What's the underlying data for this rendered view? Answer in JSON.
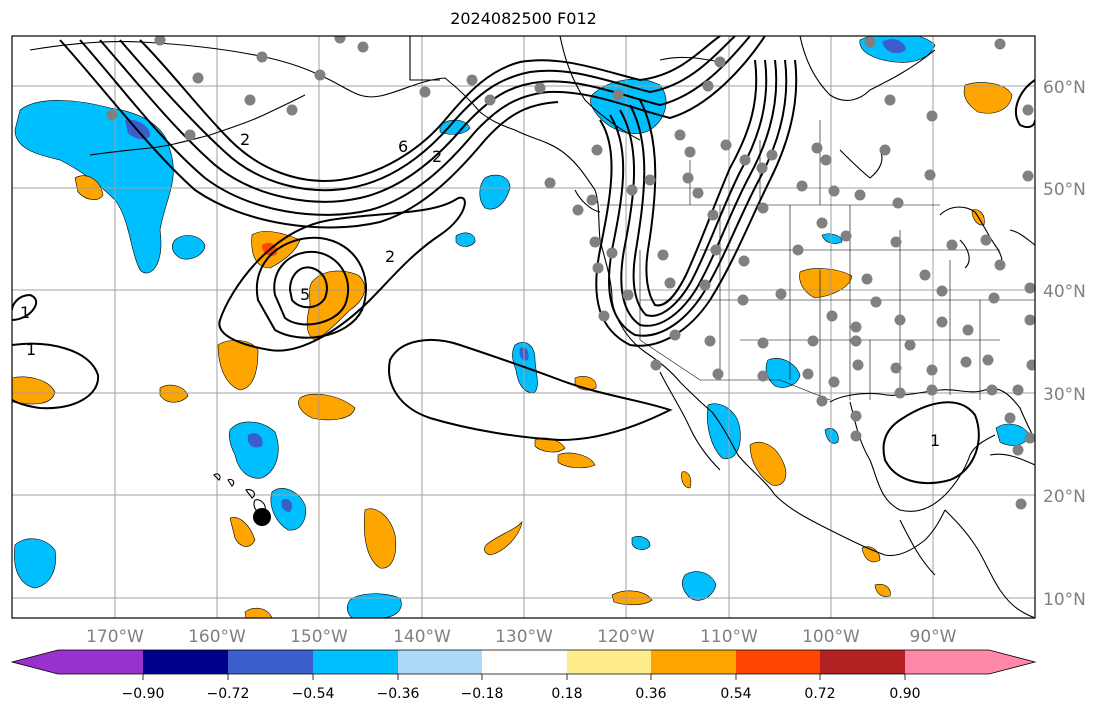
{
  "title": "2024082500 F012",
  "latitude_labels": [
    "60°N",
    "50°N",
    "40°N",
    "30°N",
    "20°N",
    "10°N"
  ],
  "longitude_labels": [
    "170°W",
    "160°W",
    "150°W",
    "140°W",
    "130°W",
    "120°W",
    "110°W",
    "100°W",
    "90°W"
  ],
  "colorbar": {
    "tick_labels": [
      "−0.90",
      "−0.72",
      "−0.54",
      "−0.36",
      "−0.18",
      "0.18",
      "0.36",
      "0.54",
      "0.72",
      "0.90"
    ],
    "colors": [
      "#9932cc",
      "#00008b",
      "#3a5fcd",
      "#00bfff",
      "#add8f8",
      "#ffffff",
      "#ffec8b",
      "#ffa500",
      "#ff4500",
      "#b22222",
      "#ff87a8"
    ]
  },
  "contour_labels": [
    "1",
    "1",
    "2",
    "2",
    "2",
    "5",
    "6",
    "1"
  ],
  "colors": {
    "grid": "#a0a0a0",
    "coast": "#000000",
    "stations": "#808080",
    "marker": "#000000"
  }
}
